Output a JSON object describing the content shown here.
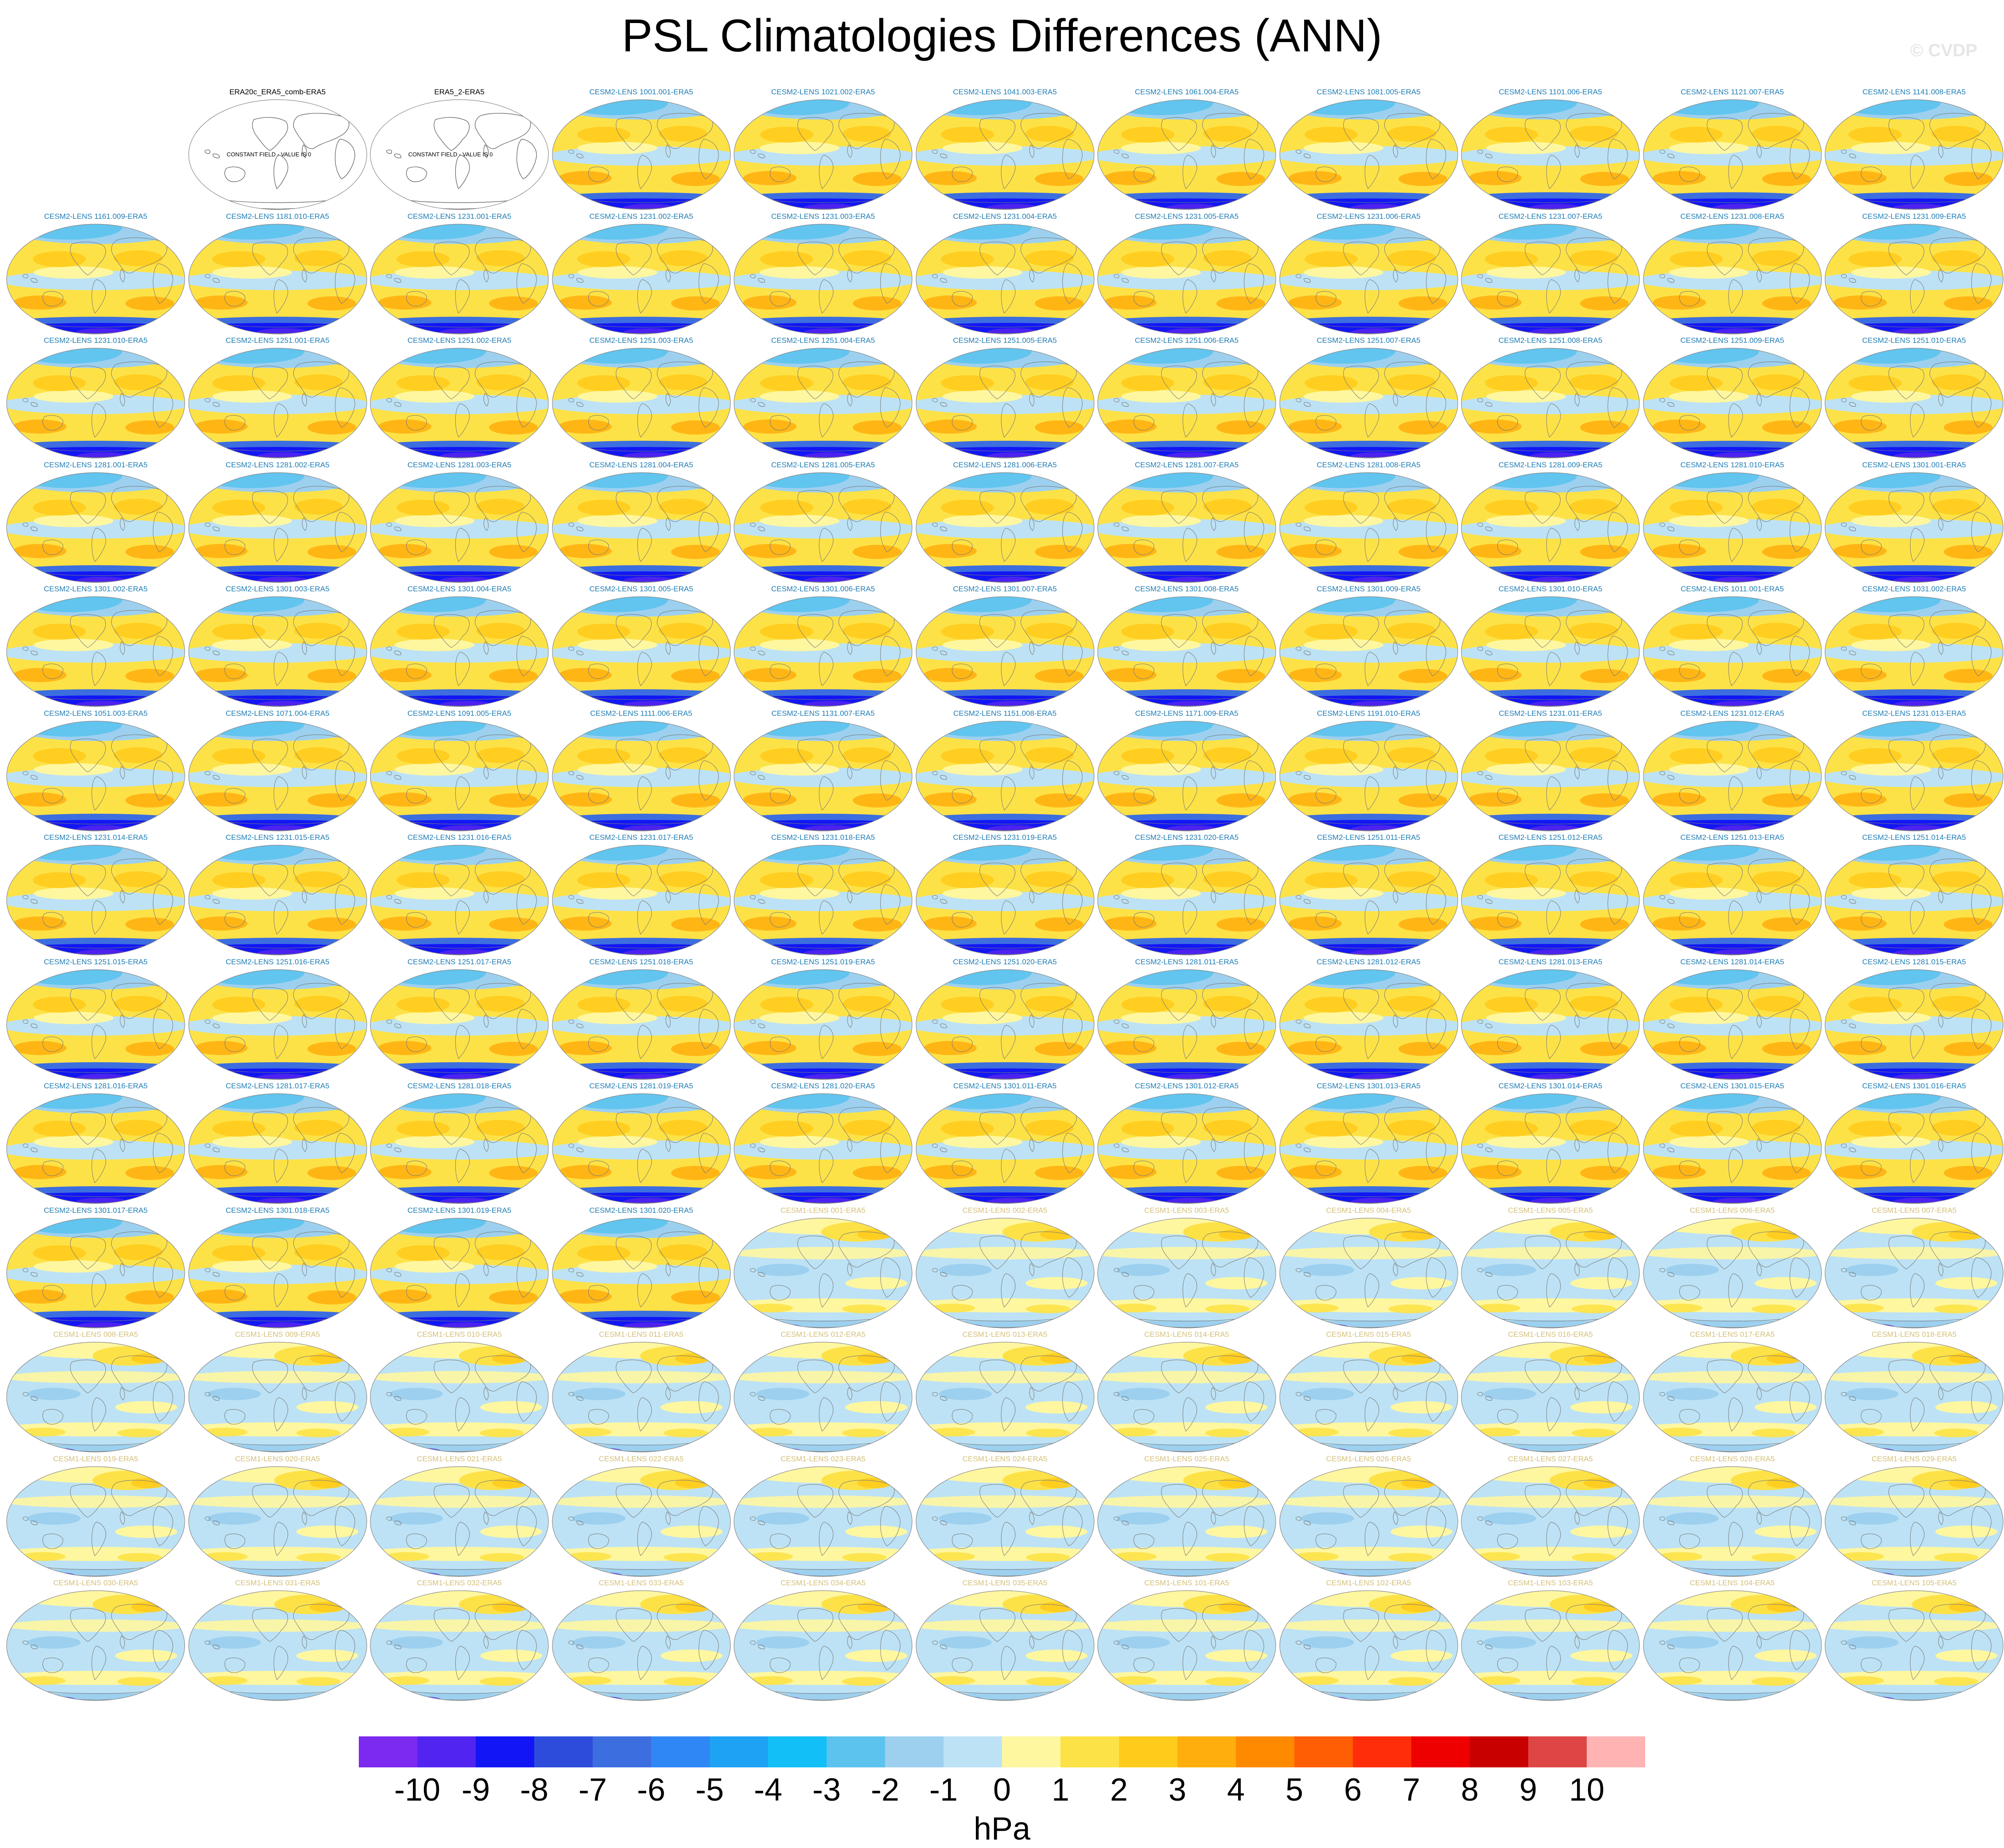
{
  "title": "PSL Climatologies Differences (ANN)",
  "credit": "© CVDP",
  "colorbar": {
    "units": "hPa",
    "tick_labels": [
      "-10",
      "-9",
      "-8",
      "-7",
      "-6",
      "-5",
      "-4",
      "-3",
      "-2",
      "-1",
      "0",
      "1",
      "2",
      "3",
      "4",
      "5",
      "6",
      "7",
      "8",
      "9",
      "10"
    ],
    "colors": [
      "#7d2af0",
      "#5224f0",
      "#1216f5",
      "#2e4cdc",
      "#3c6ee0",
      "#2f87f5",
      "#1ea2f4",
      "#12c0f7",
      "#5bc3ee",
      "#9dd0ef",
      "#bde2f5",
      "#fff7a0",
      "#fde247",
      "#ffcc1c",
      "#ffae0d",
      "#ff8a00",
      "#ff5e05",
      "#ff2d0a",
      "#ee0000",
      "#c90000",
      "#dd4644",
      "#ffb3b3"
    ]
  },
  "panel_style": {
    "obs_label_color": "#000000",
    "cesm2_label_color": "#1f7db5",
    "cesm1_label_color": "#d4c07a"
  },
  "panels": [
    {
      "label": "ERA20c_ERA5_comb-ERA5",
      "kind": "const",
      "const_text": "CONSTANT FIELD - VALUE IS 0"
    },
    {
      "label": "ERA5_2-ERA5",
      "kind": "const",
      "const_text": "CONSTANT FIELD - VALUE IS 0"
    },
    {
      "label": "CESM2-LENS 1001.001-ERA5",
      "kind": "cesm2"
    },
    {
      "label": "CESM2-LENS 1021.002-ERA5",
      "kind": "cesm2"
    },
    {
      "label": "CESM2-LENS 1041.003-ERA5",
      "kind": "cesm2"
    },
    {
      "label": "CESM2-LENS 1061.004-ERA5",
      "kind": "cesm2"
    },
    {
      "label": "CESM2-LENS 1081.005-ERA5",
      "kind": "cesm2"
    },
    {
      "label": "CESM2-LENS 1101.006-ERA5",
      "kind": "cesm2"
    },
    {
      "label": "CESM2-LENS 1121.007-ERA5",
      "kind": "cesm2"
    },
    {
      "label": "CESM2-LENS 1141.008-ERA5",
      "kind": "cesm2"
    },
    {
      "label": "CESM2-LENS 1161.009-ERA5",
      "kind": "cesm2"
    },
    {
      "label": "CESM2-LENS 1181.010-ERA5",
      "kind": "cesm2"
    },
    {
      "label": "CESM2-LENS 1231.001-ERA5",
      "kind": "cesm2"
    },
    {
      "label": "CESM2-LENS 1231.002-ERA5",
      "kind": "cesm2"
    },
    {
      "label": "CESM2-LENS 1231.003-ERA5",
      "kind": "cesm2"
    },
    {
      "label": "CESM2-LENS 1231.004-ERA5",
      "kind": "cesm2"
    },
    {
      "label": "CESM2-LENS 1231.005-ERA5",
      "kind": "cesm2"
    },
    {
      "label": "CESM2-LENS 1231.006-ERA5",
      "kind": "cesm2"
    },
    {
      "label": "CESM2-LENS 1231.007-ERA5",
      "kind": "cesm2"
    },
    {
      "label": "CESM2-LENS 1231.008-ERA5",
      "kind": "cesm2"
    },
    {
      "label": "CESM2-LENS 1231.009-ERA5",
      "kind": "cesm2"
    },
    {
      "label": "CESM2-LENS 1231.010-ERA5",
      "kind": "cesm2"
    },
    {
      "label": "CESM2-LENS 1251.001-ERA5",
      "kind": "cesm2"
    },
    {
      "label": "CESM2-LENS 1251.002-ERA5",
      "kind": "cesm2"
    },
    {
      "label": "CESM2-LENS 1251.003-ERA5",
      "kind": "cesm2"
    },
    {
      "label": "CESM2-LENS 1251.004-ERA5",
      "kind": "cesm2"
    },
    {
      "label": "CESM2-LENS 1251.005-ERA5",
      "kind": "cesm2"
    },
    {
      "label": "CESM2-LENS 1251.006-ERA5",
      "kind": "cesm2"
    },
    {
      "label": "CESM2-LENS 1251.007-ERA5",
      "kind": "cesm2"
    },
    {
      "label": "CESM2-LENS 1251.008-ERA5",
      "kind": "cesm2"
    },
    {
      "label": "CESM2-LENS 1251.009-ERA5",
      "kind": "cesm2"
    },
    {
      "label": "CESM2-LENS 1251.010-ERA5",
      "kind": "cesm2"
    },
    {
      "label": "CESM2-LENS 1281.001-ERA5",
      "kind": "cesm2"
    },
    {
      "label": "CESM2-LENS 1281.002-ERA5",
      "kind": "cesm2"
    },
    {
      "label": "CESM2-LENS 1281.003-ERA5",
      "kind": "cesm2"
    },
    {
      "label": "CESM2-LENS 1281.004-ERA5",
      "kind": "cesm2"
    },
    {
      "label": "CESM2-LENS 1281.005-ERA5",
      "kind": "cesm2"
    },
    {
      "label": "CESM2-LENS 1281.006-ERA5",
      "kind": "cesm2"
    },
    {
      "label": "CESM2-LENS 1281.007-ERA5",
      "kind": "cesm2"
    },
    {
      "label": "CESM2-LENS 1281.008-ERA5",
      "kind": "cesm2"
    },
    {
      "label": "CESM2-LENS 1281.009-ERA5",
      "kind": "cesm2"
    },
    {
      "label": "CESM2-LENS 1281.010-ERA5",
      "kind": "cesm2"
    },
    {
      "label": "CESM2-LENS 1301.001-ERA5",
      "kind": "cesm2"
    },
    {
      "label": "CESM2-LENS 1301.002-ERA5",
      "kind": "cesm2"
    },
    {
      "label": "CESM2-LENS 1301.003-ERA5",
      "kind": "cesm2"
    },
    {
      "label": "CESM2-LENS 1301.004-ERA5",
      "kind": "cesm2"
    },
    {
      "label": "CESM2-LENS 1301.005-ERA5",
      "kind": "cesm2"
    },
    {
      "label": "CESM2-LENS 1301.006-ERA5",
      "kind": "cesm2"
    },
    {
      "label": "CESM2-LENS 1301.007-ERA5",
      "kind": "cesm2"
    },
    {
      "label": "CESM2-LENS 1301.008-ERA5",
      "kind": "cesm2"
    },
    {
      "label": "CESM2-LENS 1301.009-ERA5",
      "kind": "cesm2"
    },
    {
      "label": "CESM2-LENS 1301.010-ERA5",
      "kind": "cesm2"
    },
    {
      "label": "CESM2-LENS 1011.001-ERA5",
      "kind": "cesm2"
    },
    {
      "label": "CESM2-LENS 1031.002-ERA5",
      "kind": "cesm2"
    },
    {
      "label": "CESM2-LENS 1051.003-ERA5",
      "kind": "cesm2"
    },
    {
      "label": "CESM2-LENS 1071.004-ERA5",
      "kind": "cesm2"
    },
    {
      "label": "CESM2-LENS 1091.005-ERA5",
      "kind": "cesm2"
    },
    {
      "label": "CESM2-LENS 1111.006-ERA5",
      "kind": "cesm2"
    },
    {
      "label": "CESM2-LENS 1131.007-ERA5",
      "kind": "cesm2"
    },
    {
      "label": "CESM2-LENS 1151.008-ERA5",
      "kind": "cesm2"
    },
    {
      "label": "CESM2-LENS 1171.009-ERA5",
      "kind": "cesm2"
    },
    {
      "label": "CESM2-LENS 1191.010-ERA5",
      "kind": "cesm2"
    },
    {
      "label": "CESM2-LENS 1231.011-ERA5",
      "kind": "cesm2"
    },
    {
      "label": "CESM2-LENS 1231.012-ERA5",
      "kind": "cesm2"
    },
    {
      "label": "CESM2-LENS 1231.013-ERA5",
      "kind": "cesm2"
    },
    {
      "label": "CESM2-LENS 1231.014-ERA5",
      "kind": "cesm2"
    },
    {
      "label": "CESM2-LENS 1231.015-ERA5",
      "kind": "cesm2"
    },
    {
      "label": "CESM2-LENS 1231.016-ERA5",
      "kind": "cesm2"
    },
    {
      "label": "CESM2-LENS 1231.017-ERA5",
      "kind": "cesm2"
    },
    {
      "label": "CESM2-LENS 1231.018-ERA5",
      "kind": "cesm2"
    },
    {
      "label": "CESM2-LENS 1231.019-ERA5",
      "kind": "cesm2"
    },
    {
      "label": "CESM2-LENS 1231.020-ERA5",
      "kind": "cesm2"
    },
    {
      "label": "CESM2-LENS 1251.011-ERA5",
      "kind": "cesm2"
    },
    {
      "label": "CESM2-LENS 1251.012-ERA5",
      "kind": "cesm2"
    },
    {
      "label": "CESM2-LENS 1251.013-ERA5",
      "kind": "cesm2"
    },
    {
      "label": "CESM2-LENS 1251.014-ERA5",
      "kind": "cesm2"
    },
    {
      "label": "CESM2-LENS 1251.015-ERA5",
      "kind": "cesm2"
    },
    {
      "label": "CESM2-LENS 1251.016-ERA5",
      "kind": "cesm2"
    },
    {
      "label": "CESM2-LENS 1251.017-ERA5",
      "kind": "cesm2"
    },
    {
      "label": "CESM2-LENS 1251.018-ERA5",
      "kind": "cesm2"
    },
    {
      "label": "CESM2-LENS 1251.019-ERA5",
      "kind": "cesm2"
    },
    {
      "label": "CESM2-LENS 1251.020-ERA5",
      "kind": "cesm2"
    },
    {
      "label": "CESM2-LENS 1281.011-ERA5",
      "kind": "cesm2"
    },
    {
      "label": "CESM2-LENS 1281.012-ERA5",
      "kind": "cesm2"
    },
    {
      "label": "CESM2-LENS 1281.013-ERA5",
      "kind": "cesm2"
    },
    {
      "label": "CESM2-LENS 1281.014-ERA5",
      "kind": "cesm2"
    },
    {
      "label": "CESM2-LENS 1281.015-ERA5",
      "kind": "cesm2"
    },
    {
      "label": "CESM2-LENS 1281.016-ERA5",
      "kind": "cesm2"
    },
    {
      "label": "CESM2-LENS 1281.017-ERA5",
      "kind": "cesm2"
    },
    {
      "label": "CESM2-LENS 1281.018-ERA5",
      "kind": "cesm2"
    },
    {
      "label": "CESM2-LENS 1281.019-ERA5",
      "kind": "cesm2"
    },
    {
      "label": "CESM2-LENS 1281.020-ERA5",
      "kind": "cesm2"
    },
    {
      "label": "CESM2-LENS 1301.011-ERA5",
      "kind": "cesm2"
    },
    {
      "label": "CESM2-LENS 1301.012-ERA5",
      "kind": "cesm2"
    },
    {
      "label": "CESM2-LENS 1301.013-ERA5",
      "kind": "cesm2"
    },
    {
      "label": "CESM2-LENS 1301.014-ERA5",
      "kind": "cesm2"
    },
    {
      "label": "CESM2-LENS 1301.015-ERA5",
      "kind": "cesm2"
    },
    {
      "label": "CESM2-LENS 1301.016-ERA5",
      "kind": "cesm2"
    },
    {
      "label": "CESM2-LENS 1301.017-ERA5",
      "kind": "cesm2"
    },
    {
      "label": "CESM2-LENS 1301.018-ERA5",
      "kind": "cesm2"
    },
    {
      "label": "CESM2-LENS 1301.019-ERA5",
      "kind": "cesm2"
    },
    {
      "label": "CESM2-LENS 1301.020-ERA5",
      "kind": "cesm2"
    },
    {
      "label": "CESM1-LENS 001-ERA5",
      "kind": "cesm1"
    },
    {
      "label": "CESM1-LENS 002-ERA5",
      "kind": "cesm1"
    },
    {
      "label": "CESM1-LENS 003-ERA5",
      "kind": "cesm1"
    },
    {
      "label": "CESM1-LENS 004-ERA5",
      "kind": "cesm1"
    },
    {
      "label": "CESM1-LENS 005-ERA5",
      "kind": "cesm1"
    },
    {
      "label": "CESM1-LENS 006-ERA5",
      "kind": "cesm1"
    },
    {
      "label": "CESM1-LENS 007-ERA5",
      "kind": "cesm1"
    },
    {
      "label": "CESM1-LENS 008-ERA5",
      "kind": "cesm1"
    },
    {
      "label": "CESM1-LENS 009-ERA5",
      "kind": "cesm1"
    },
    {
      "label": "CESM1-LENS 010-ERA5",
      "kind": "cesm1"
    },
    {
      "label": "CESM1-LENS 011-ERA5",
      "kind": "cesm1"
    },
    {
      "label": "CESM1-LENS 012-ERA5",
      "kind": "cesm1"
    },
    {
      "label": "CESM1-LENS 013-ERA5",
      "kind": "cesm1"
    },
    {
      "label": "CESM1-LENS 014-ERA5",
      "kind": "cesm1"
    },
    {
      "label": "CESM1-LENS 015-ERA5",
      "kind": "cesm1"
    },
    {
      "label": "CESM1-LENS 016-ERA5",
      "kind": "cesm1"
    },
    {
      "label": "CESM1-LENS 017-ERA5",
      "kind": "cesm1"
    },
    {
      "label": "CESM1-LENS 018-ERA5",
      "kind": "cesm1"
    },
    {
      "label": "CESM1-LENS 019-ERA5",
      "kind": "cesm1"
    },
    {
      "label": "CESM1-LENS 020-ERA5",
      "kind": "cesm1"
    },
    {
      "label": "CESM1-LENS 021-ERA5",
      "kind": "cesm1"
    },
    {
      "label": "CESM1-LENS 022-ERA5",
      "kind": "cesm1"
    },
    {
      "label": "CESM1-LENS 023-ERA5",
      "kind": "cesm1"
    },
    {
      "label": "CESM1-LENS 024-ERA5",
      "kind": "cesm1"
    },
    {
      "label": "CESM1-LENS 025-ERA5",
      "kind": "cesm1"
    },
    {
      "label": "CESM1-LENS 026-ERA5",
      "kind": "cesm1"
    },
    {
      "label": "CESM1-LENS 027-ERA5",
      "kind": "cesm1"
    },
    {
      "label": "CESM1-LENS 028-ERA5",
      "kind": "cesm1"
    },
    {
      "label": "CESM1-LENS 029-ERA5",
      "kind": "cesm1"
    },
    {
      "label": "CESM1-LENS 030-ERA5",
      "kind": "cesm1"
    },
    {
      "label": "CESM1-LENS 031-ERA5",
      "kind": "cesm1"
    },
    {
      "label": "CESM1-LENS 032-ERA5",
      "kind": "cesm1"
    },
    {
      "label": "CESM1-LENS 033-ERA5",
      "kind": "cesm1"
    },
    {
      "label": "CESM1-LENS 034-ERA5",
      "kind": "cesm1"
    },
    {
      "label": "CESM1-LENS 035-ERA5",
      "kind": "cesm1"
    },
    {
      "label": "CESM1-LENS 101-ERA5",
      "kind": "cesm1"
    },
    {
      "label": "CESM1-LENS 102-ERA5",
      "kind": "cesm1"
    },
    {
      "label": "CESM1-LENS 103-ERA5",
      "kind": "cesm1"
    },
    {
      "label": "CESM1-LENS 104-ERA5",
      "kind": "cesm1"
    },
    {
      "label": "CESM1-LENS 105-ERA5",
      "kind": "cesm1"
    }
  ]
}
